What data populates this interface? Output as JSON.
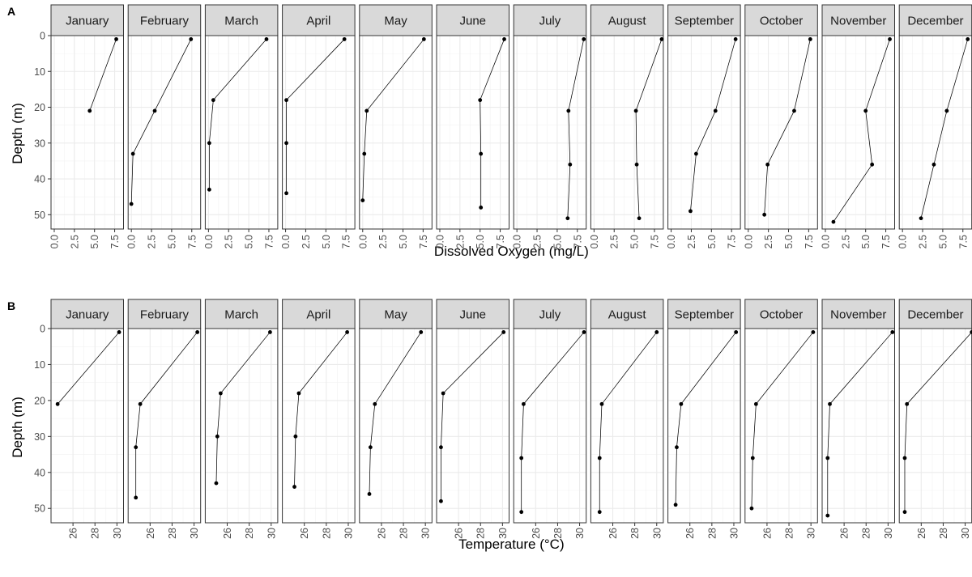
{
  "chart_data": [
    {
      "tag": "A",
      "type": "line",
      "facet_by": "month",
      "xlabel": "Dissolved Oxygen (mg/L)",
      "ylabel": "Depth (m)",
      "y_reversed": true,
      "ylim": [
        0,
        54
      ],
      "y_ticks": [
        0,
        10,
        20,
        30,
        40,
        50
      ],
      "xlim": [
        -0.4,
        8.6
      ],
      "x_ticks": [
        0,
        2.5,
        5,
        7.5
      ],
      "x_tick_labels": [
        "0.0",
        "2.5",
        "5.0",
        "7.5"
      ],
      "grid": true,
      "panels": [
        {
          "label": "January",
          "x": [
            7.7,
            4.4
          ],
          "y": [
            1,
            21
          ]
        },
        {
          "label": "February",
          "x": [
            7.4,
            2.9,
            0.2,
            0.0
          ],
          "y": [
            1,
            21,
            33,
            47
          ]
        },
        {
          "label": "March",
          "x": [
            7.2,
            0.6,
            0.1,
            0.1
          ],
          "y": [
            1,
            18,
            30,
            43
          ]
        },
        {
          "label": "April",
          "x": [
            7.3,
            0.1,
            0.1,
            0.1
          ],
          "y": [
            1,
            18,
            30,
            44
          ]
        },
        {
          "label": "May",
          "x": [
            7.6,
            0.5,
            0.2,
            0.0
          ],
          "y": [
            1,
            21,
            33,
            46
          ]
        },
        {
          "label": "June",
          "x": [
            8.0,
            5.0,
            5.1,
            5.1
          ],
          "y": [
            1,
            18,
            33,
            48
          ]
        },
        {
          "label": "July",
          "x": [
            8.3,
            6.4,
            6.6,
            6.3
          ],
          "y": [
            1,
            21,
            36,
            51
          ]
        },
        {
          "label": "August",
          "x": [
            8.4,
            5.2,
            5.3,
            5.6
          ],
          "y": [
            1,
            21,
            36,
            51
          ]
        },
        {
          "label": "September",
          "x": [
            8.0,
            5.5,
            3.1,
            2.4
          ],
          "y": [
            1,
            21,
            33,
            49
          ]
        },
        {
          "label": "October",
          "x": [
            7.7,
            5.7,
            2.4,
            2.0
          ],
          "y": [
            1,
            21,
            36,
            50
          ]
        },
        {
          "label": "November",
          "x": [
            8.0,
            5.0,
            5.8,
            1.0
          ],
          "y": [
            1,
            21,
            36,
            52
          ]
        },
        {
          "label": "December",
          "x": [
            8.1,
            5.5,
            3.9,
            2.3
          ],
          "y": [
            1,
            21,
            36,
            51
          ]
        }
      ]
    },
    {
      "tag": "B",
      "type": "line",
      "facet_by": "month",
      "xlabel": "Temperature (°C)",
      "ylabel": "Depth (m)",
      "y_reversed": true,
      "ylim": [
        0,
        54
      ],
      "y_ticks": [
        0,
        10,
        20,
        30,
        40,
        50
      ],
      "xlim": [
        24.0,
        30.6
      ],
      "x_ticks": [
        26,
        28,
        30
      ],
      "x_tick_labels": [
        "26",
        "28",
        "30"
      ],
      "grid": true,
      "panels": [
        {
          "label": "January",
          "x": [
            30.2,
            24.6
          ],
          "y": [
            1,
            21
          ]
        },
        {
          "label": "February",
          "x": [
            30.3,
            25.1,
            24.7,
            24.7
          ],
          "y": [
            1,
            21,
            33,
            47
          ]
        },
        {
          "label": "March",
          "x": [
            29.9,
            25.4,
            25.1,
            25.0
          ],
          "y": [
            1,
            18,
            30,
            43
          ]
        },
        {
          "label": "April",
          "x": [
            29.9,
            25.5,
            25.2,
            25.1
          ],
          "y": [
            1,
            18,
            30,
            44
          ]
        },
        {
          "label": "May",
          "x": [
            29.6,
            25.4,
            25.0,
            24.9
          ],
          "y": [
            1,
            21,
            33,
            46
          ]
        },
        {
          "label": "June",
          "x": [
            30.1,
            24.6,
            24.4,
            24.4
          ],
          "y": [
            1,
            18,
            33,
            48
          ]
        },
        {
          "label": "July",
          "x": [
            30.4,
            24.9,
            24.7,
            24.7
          ],
          "y": [
            1,
            21,
            36,
            51
          ]
        },
        {
          "label": "August",
          "x": [
            30.0,
            25.0,
            24.8,
            24.8
          ],
          "y": [
            1,
            21,
            36,
            51
          ]
        },
        {
          "label": "September",
          "x": [
            30.2,
            25.2,
            24.8,
            24.7
          ],
          "y": [
            1,
            21,
            33,
            49
          ]
        },
        {
          "label": "October",
          "x": [
            30.2,
            25.0,
            24.7,
            24.6
          ],
          "y": [
            1,
            21,
            36,
            50
          ]
        },
        {
          "label": "November",
          "x": [
            30.4,
            24.7,
            24.5,
            24.5
          ],
          "y": [
            1,
            21,
            36,
            52
          ]
        },
        {
          "label": "December",
          "x": [
            30.6,
            24.7,
            24.5,
            24.5
          ],
          "y": [
            1,
            21,
            36,
            51
          ]
        }
      ]
    }
  ]
}
